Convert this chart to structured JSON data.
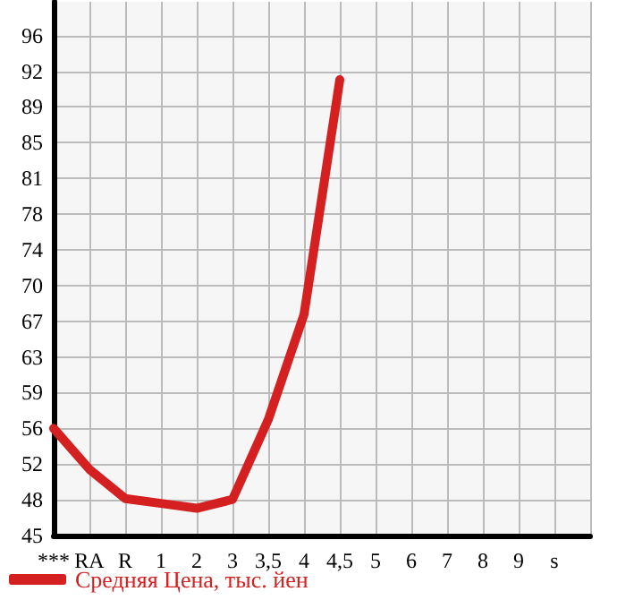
{
  "chart_data": {
    "type": "line",
    "categories": [
      "***",
      "RA",
      "R",
      "1",
      "2",
      "3",
      "3,5",
      "4",
      "4,5",
      "5",
      "6",
      "7",
      "8",
      "9",
      "s",
      null
    ],
    "series": [
      {
        "name": "Средняя Цена, тыс. йен",
        "color": "#d42020",
        "values": [
          55.6,
          51.4,
          48.4,
          47.9,
          47.4,
          48.3,
          56.5,
          67.3,
          91.4,
          null,
          null,
          null,
          null,
          null,
          null,
          null
        ]
      }
    ],
    "ylim": [
      44.6,
      99.4
    ],
    "yticks": [
      {
        "value": 44.6,
        "label": "45"
      },
      {
        "value": 48.27,
        "label": "48"
      },
      {
        "value": 51.93,
        "label": "52"
      },
      {
        "value": 55.6,
        "label": "56"
      },
      {
        "value": 59.27,
        "label": "59"
      },
      {
        "value": 62.93,
        "label": "63"
      },
      {
        "value": 66.6,
        "label": "67"
      },
      {
        "value": 70.27,
        "label": "70"
      },
      {
        "value": 73.93,
        "label": "74"
      },
      {
        "value": 77.6,
        "label": "78"
      },
      {
        "value": 81.27,
        "label": "81"
      },
      {
        "value": 84.93,
        "label": "85"
      },
      {
        "value": 88.6,
        "label": "89"
      },
      {
        "value": 92.27,
        "label": "92"
      },
      {
        "value": 95.93,
        "label": "96"
      }
    ],
    "grid": true,
    "legend": "bottom left",
    "marker": "none",
    "line_style": "solid"
  }
}
